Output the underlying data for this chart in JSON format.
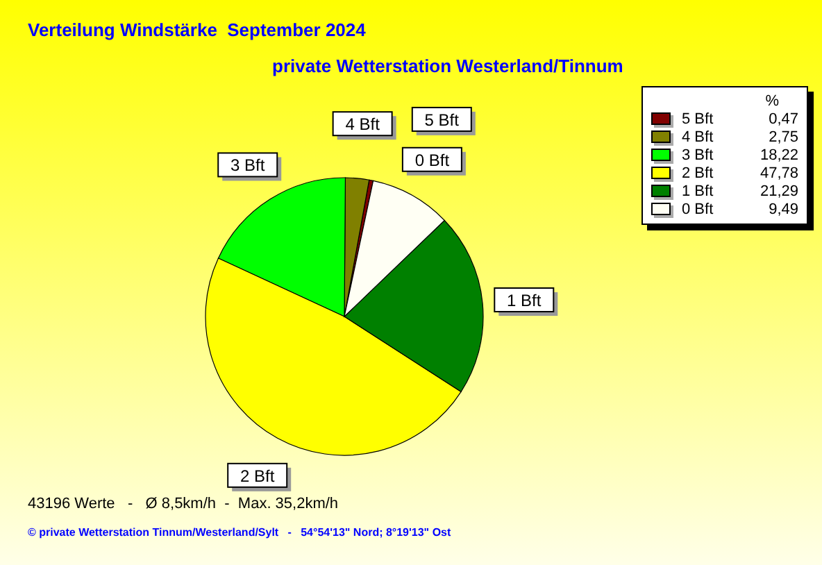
{
  "chart_data": {
    "type": "pie",
    "title": "Verteilung Windstärke  September 2024",
    "subtitle": "private Wetterstation Westerland/Tinnum",
    "legend_title": "%",
    "legend": "right",
    "categories": [
      "5 Bft",
      "4 Bft",
      "3 Bft",
      "2 Bft",
      "1 Bft",
      "0 Bft"
    ],
    "values": [
      0.47,
      2.75,
      18.22,
      47.78,
      21.29,
      9.49
    ],
    "value_labels": [
      "0,47",
      "2,75",
      "18,22",
      "47,78",
      "21,29",
      "9,49"
    ],
    "colors": [
      "#800000",
      "#808000",
      "#00ff00",
      "#ffff00",
      "#008000",
      "#fffff4"
    ],
    "annotations": [
      "43196 Werte   -   Ø 8,5km/h  -  Max. 35,2km/h",
      "© private Wetterstation Tinnum/Westerland/Sylt   -   54°54'13\" Nord; 8°19'13\" Ost"
    ]
  }
}
